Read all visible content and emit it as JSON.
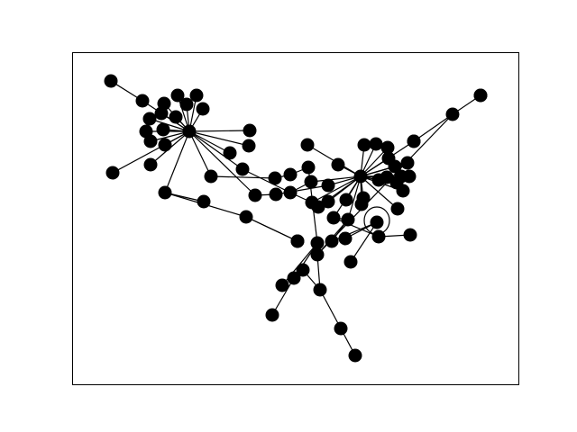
{
  "graph": {
    "nodes": [
      {
        "id": "n1",
        "label": ""
      },
      {
        "id": "n2",
        "label": ""
      },
      {
        "id": "n3",
        "label": ""
      },
      {
        "id": "n4",
        "label": ""
      },
      {
        "id": "n5",
        "label": ""
      },
      {
        "id": "n6",
        "label": ""
      },
      {
        "id": "n7",
        "label": ""
      },
      {
        "id": "n8",
        "label": ""
      },
      {
        "id": "n9",
        "label": ""
      },
      {
        "id": "n10",
        "label": ""
      },
      {
        "id": "n11",
        "label": ""
      },
      {
        "id": "n12",
        "label": ""
      },
      {
        "id": "n13",
        "label": ""
      },
      {
        "id": "n14",
        "label": ""
      },
      {
        "id": "n15",
        "label": ""
      },
      {
        "id": "n16",
        "label": ""
      },
      {
        "id": "n17",
        "label": ""
      },
      {
        "id": "n18",
        "label": ""
      },
      {
        "id": "n19",
        "label": ""
      },
      {
        "id": "n20",
        "label": ""
      },
      {
        "id": "n21",
        "label": ""
      },
      {
        "id": "n22",
        "label": ""
      },
      {
        "id": "n23",
        "label": ""
      },
      {
        "id": "n24",
        "label": ""
      },
      {
        "id": "n25",
        "label": ""
      },
      {
        "id": "n26",
        "label": ""
      },
      {
        "id": "n27",
        "label": ""
      },
      {
        "id": "n28",
        "label": ""
      },
      {
        "id": "n29",
        "label": ""
      },
      {
        "id": "n30",
        "label": ""
      },
      {
        "id": "n31",
        "label": ""
      },
      {
        "id": "n32",
        "label": ""
      },
      {
        "id": "n33",
        "label": ""
      },
      {
        "id": "n34",
        "label": ""
      },
      {
        "id": "n35",
        "label": ""
      },
      {
        "id": "n36",
        "label": ""
      },
      {
        "id": "n37",
        "label": ""
      },
      {
        "id": "n38",
        "label": ""
      },
      {
        "id": "n39",
        "label": ""
      },
      {
        "id": "n40",
        "label": ""
      },
      {
        "id": "n41",
        "label": ""
      },
      {
        "id": "n42",
        "label": ""
      },
      {
        "id": "n43",
        "label": ""
      },
      {
        "id": "n44",
        "label": ""
      },
      {
        "id": "n45",
        "label": ""
      },
      {
        "id": "n46",
        "label": ""
      },
      {
        "id": "n47",
        "label": ""
      },
      {
        "id": "n48",
        "label": ""
      },
      {
        "id": "n49",
        "label": ""
      },
      {
        "id": "n50",
        "label": ""
      },
      {
        "id": "n51",
        "label": ""
      },
      {
        "id": "n52",
        "label": ""
      },
      {
        "id": "n53",
        "label": ""
      },
      {
        "id": "n54",
        "label": ""
      },
      {
        "id": "n55",
        "label": ""
      },
      {
        "id": "n56",
        "label": ""
      },
      {
        "id": "n57",
        "label": ""
      },
      {
        "id": "n58",
        "label": ""
      },
      {
        "id": "n59",
        "label": ""
      },
      {
        "id": "n60",
        "label": ""
      },
      {
        "id": "n61",
        "label": ""
      },
      {
        "id": "n62",
        "label": ""
      },
      {
        "id": "n63",
        "label": ""
      },
      {
        "id": "n64",
        "label": ""
      },
      {
        "id": "n65",
        "label": ""
      },
      {
        "id": "n66",
        "label": ""
      },
      {
        "id": "n67",
        "label": ""
      },
      {
        "id": "n68",
        "label": ""
      },
      {
        "id": "n69",
        "label": ""
      },
      {
        "id": "n70",
        "label": ""
      },
      {
        "id": "n71",
        "label": ""
      },
      {
        "id": "n72",
        "label": ""
      },
      {
        "id": "n73",
        "label": ""
      },
      {
        "id": "n74",
        "label": ""
      },
      {
        "id": "n75",
        "label": ""
      },
      {
        "id": "n76",
        "label": ""
      },
      {
        "id": "n77",
        "label": ""
      },
      {
        "id": "n78",
        "label": ""
      },
      {
        "id": "n79",
        "label": ""
      }
    ],
    "edges": [
      [
        "n1",
        "n2"
      ],
      [
        "n2",
        "n18"
      ],
      [
        "n3",
        "n18"
      ],
      [
        "n4",
        "n18"
      ],
      [
        "n5",
        "n18"
      ],
      [
        "n6",
        "n18"
      ],
      [
        "n7",
        "n18"
      ],
      [
        "n8",
        "n18"
      ],
      [
        "n9",
        "n18"
      ],
      [
        "n10",
        "n18"
      ],
      [
        "n11",
        "n18"
      ],
      [
        "n12",
        "n18"
      ],
      [
        "n13",
        "n18"
      ],
      [
        "n14",
        "n18"
      ],
      [
        "n15",
        "n18"
      ],
      [
        "n16",
        "n18"
      ],
      [
        "n17",
        "n18"
      ],
      [
        "n18",
        "n19"
      ],
      [
        "n18",
        "n20"
      ],
      [
        "n18",
        "n21"
      ],
      [
        "n18",
        "n22"
      ],
      [
        "n18",
        "n26"
      ],
      [
        "n18",
        "n27"
      ],
      [
        "n23",
        "n22"
      ],
      [
        "n22",
        "n24"
      ],
      [
        "n24",
        "n25"
      ],
      [
        "n24",
        "n28"
      ],
      [
        "n26",
        "n29"
      ],
      [
        "n29",
        "n30"
      ],
      [
        "n30",
        "n31"
      ],
      [
        "n31",
        "n32"
      ],
      [
        "n32",
        "n33"
      ],
      [
        "n32",
        "n34"
      ],
      [
        "n33",
        "n35"
      ],
      [
        "n27",
        "n36"
      ],
      [
        "n36",
        "n40"
      ],
      [
        "n21",
        "n37"
      ],
      [
        "n37",
        "n38"
      ],
      [
        "n37",
        "n42"
      ],
      [
        "n38",
        "n45"
      ],
      [
        "n39",
        "n45"
      ],
      [
        "n41",
        "n45"
      ],
      [
        "n40",
        "n45"
      ],
      [
        "n42",
        "n45"
      ],
      [
        "n43",
        "n45"
      ],
      [
        "n44",
        "n45"
      ],
      [
        "n46",
        "n45"
      ],
      [
        "n47",
        "n45"
      ],
      [
        "n48",
        "n45"
      ],
      [
        "n49",
        "n45"
      ],
      [
        "n50",
        "n45"
      ],
      [
        "n51",
        "n45"
      ],
      [
        "n52",
        "n45"
      ],
      [
        "n53",
        "n45"
      ],
      [
        "n54",
        "n45"
      ],
      [
        "n55",
        "n45"
      ],
      [
        "n56",
        "n45"
      ],
      [
        "n57",
        "n45"
      ],
      [
        "n58",
        "n45"
      ],
      [
        "n59",
        "n45"
      ],
      [
        "n60",
        "n45"
      ],
      [
        "n61",
        "n45"
      ],
      [
        "n62",
        "n45"
      ],
      [
        "n45",
        "n63"
      ],
      [
        "n45",
        "n64"
      ],
      [
        "n63",
        "n65"
      ],
      [
        "n63",
        "n64"
      ],
      [
        "n65",
        "n66"
      ],
      [
        "n64",
        "n67"
      ],
      [
        "n67",
        "n68"
      ],
      [
        "n68",
        "n69"
      ],
      [
        "n68",
        "n70"
      ],
      [
        "n64",
        "n71"
      ],
      [
        "n71",
        "n72"
      ],
      [
        "n72",
        "n73"
      ],
      [
        "n72",
        "n74"
      ],
      [
        "n73",
        "n75"
      ],
      [
        "n71",
        "n76"
      ],
      [
        "n76",
        "n77"
      ],
      [
        "n76",
        "n78"
      ],
      [
        "n78",
        "n79"
      ]
    ],
    "self_loops": [
      "n68"
    ]
  }
}
